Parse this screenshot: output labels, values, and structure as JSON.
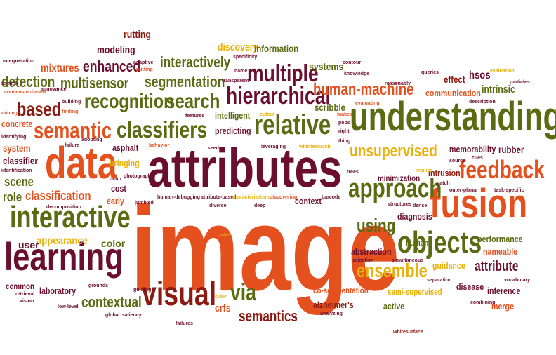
{
  "colors": {
    "maroon": "#6b0f2e",
    "orange": "#e4501e",
    "olive": "#5a6b12",
    "gold": "#e8b10c",
    "red": "#8d1a11"
  },
  "words": [
    "image",
    "attributes",
    "understanding",
    "data",
    "fusion",
    "learning",
    "interactive",
    "visual",
    "objects",
    "approach",
    "relative",
    "classifiers",
    "semantic",
    "hierarchical",
    "recognition",
    "search",
    "multiple",
    "feedback",
    "unsupervised",
    "human-machine",
    "segmentation",
    "based",
    "enhanced",
    "detection",
    "multisensor",
    "interactively",
    "classification",
    "ensemble",
    "using",
    "semantics",
    "contextual",
    "attribute",
    "via",
    "color",
    "appearance",
    "user",
    "role",
    "scene",
    "mixtures",
    "modeling",
    "rutting",
    "discovery",
    "information",
    "systems",
    "effect",
    "hsos",
    "intrinsic",
    "communication",
    "scribble",
    "intelligent",
    "predicting",
    "memorability",
    "rubber",
    "minimization",
    "intrusion",
    "diagnosis",
    "context",
    "abstraction",
    "human",
    "performance",
    "nameable",
    "guidance",
    "inference",
    "merge",
    "disease",
    "co-segmentation",
    "semi-supervised",
    "alzheimer's",
    "active",
    "laboratory",
    "common",
    "cost",
    "early",
    "bringing",
    "asphalt",
    "classifier",
    "system",
    "concrete",
    "crfs",
    "interpretation",
    "re-rank",
    "consensus-based",
    "annoyance",
    "mining",
    "identifying",
    "adopting",
    "failure",
    "identification",
    "decomposition",
    "jumbled",
    "human-debugging",
    "attribute-based",
    "diverse",
    "deep",
    "characterization",
    "discovering",
    "leveraging",
    "whittlesearch",
    "seed",
    "barcode",
    "structures",
    "dense",
    "outer-planar",
    "task-specific",
    "queries",
    "evaluation",
    "particles",
    "cues",
    "source",
    "implied",
    "patch",
    "specificity",
    "name",
    "transparent",
    "cutout",
    "adaptive",
    "putting",
    "building",
    "finding",
    "features",
    "behavior",
    "photograph",
    "dcnn",
    "roles",
    "grounds",
    "guiding",
    "cider",
    "global",
    "saliency",
    "failures",
    "retrieval",
    "vision",
    "low-level",
    "combining",
    "vocabulary",
    "separation",
    "selection",
    "simultaneous",
    "trees",
    "thing",
    "right",
    "pops",
    "makes",
    "evaluating",
    "knowledge",
    "contour",
    "reasonably",
    "description",
    "analyzing",
    "whitesurface"
  ]
}
